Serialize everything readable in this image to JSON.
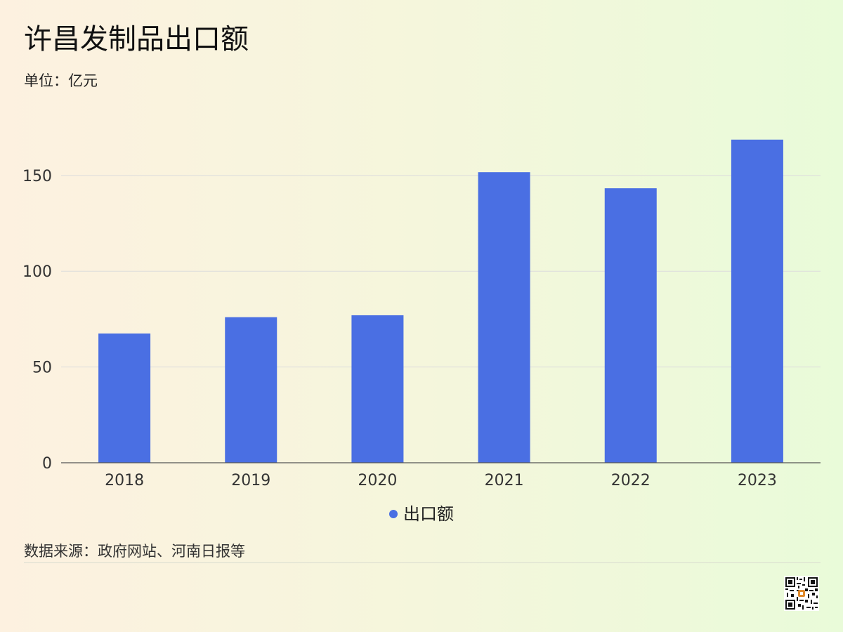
{
  "header": {
    "title": "许昌发制品出口额",
    "unit": "单位：亿元"
  },
  "footer": {
    "source": "数据来源：政府网站、河南日报等"
  },
  "colors": {
    "bar": "#4a6fe3",
    "grid": "#dcdcdc",
    "axis": "#555555",
    "tick_text": "#333333"
  },
  "icons": {
    "qr": "qr-code-icon"
  },
  "chart_data": {
    "type": "bar",
    "title": "许昌发制品出口额",
    "subtitle": "单位：亿元",
    "categories": [
      "2018",
      "2019",
      "2020",
      "2021",
      "2022",
      "2023"
    ],
    "series": [
      {
        "name": "出口额",
        "values": [
          67.5,
          76,
          77,
          151.7,
          143.3,
          168.7
        ]
      }
    ],
    "xlabel": "",
    "ylabel": "",
    "ylim": [
      0,
      180
    ],
    "yticks": [
      0,
      50,
      100,
      150
    ],
    "grid": true,
    "legend": "bottom-center"
  }
}
